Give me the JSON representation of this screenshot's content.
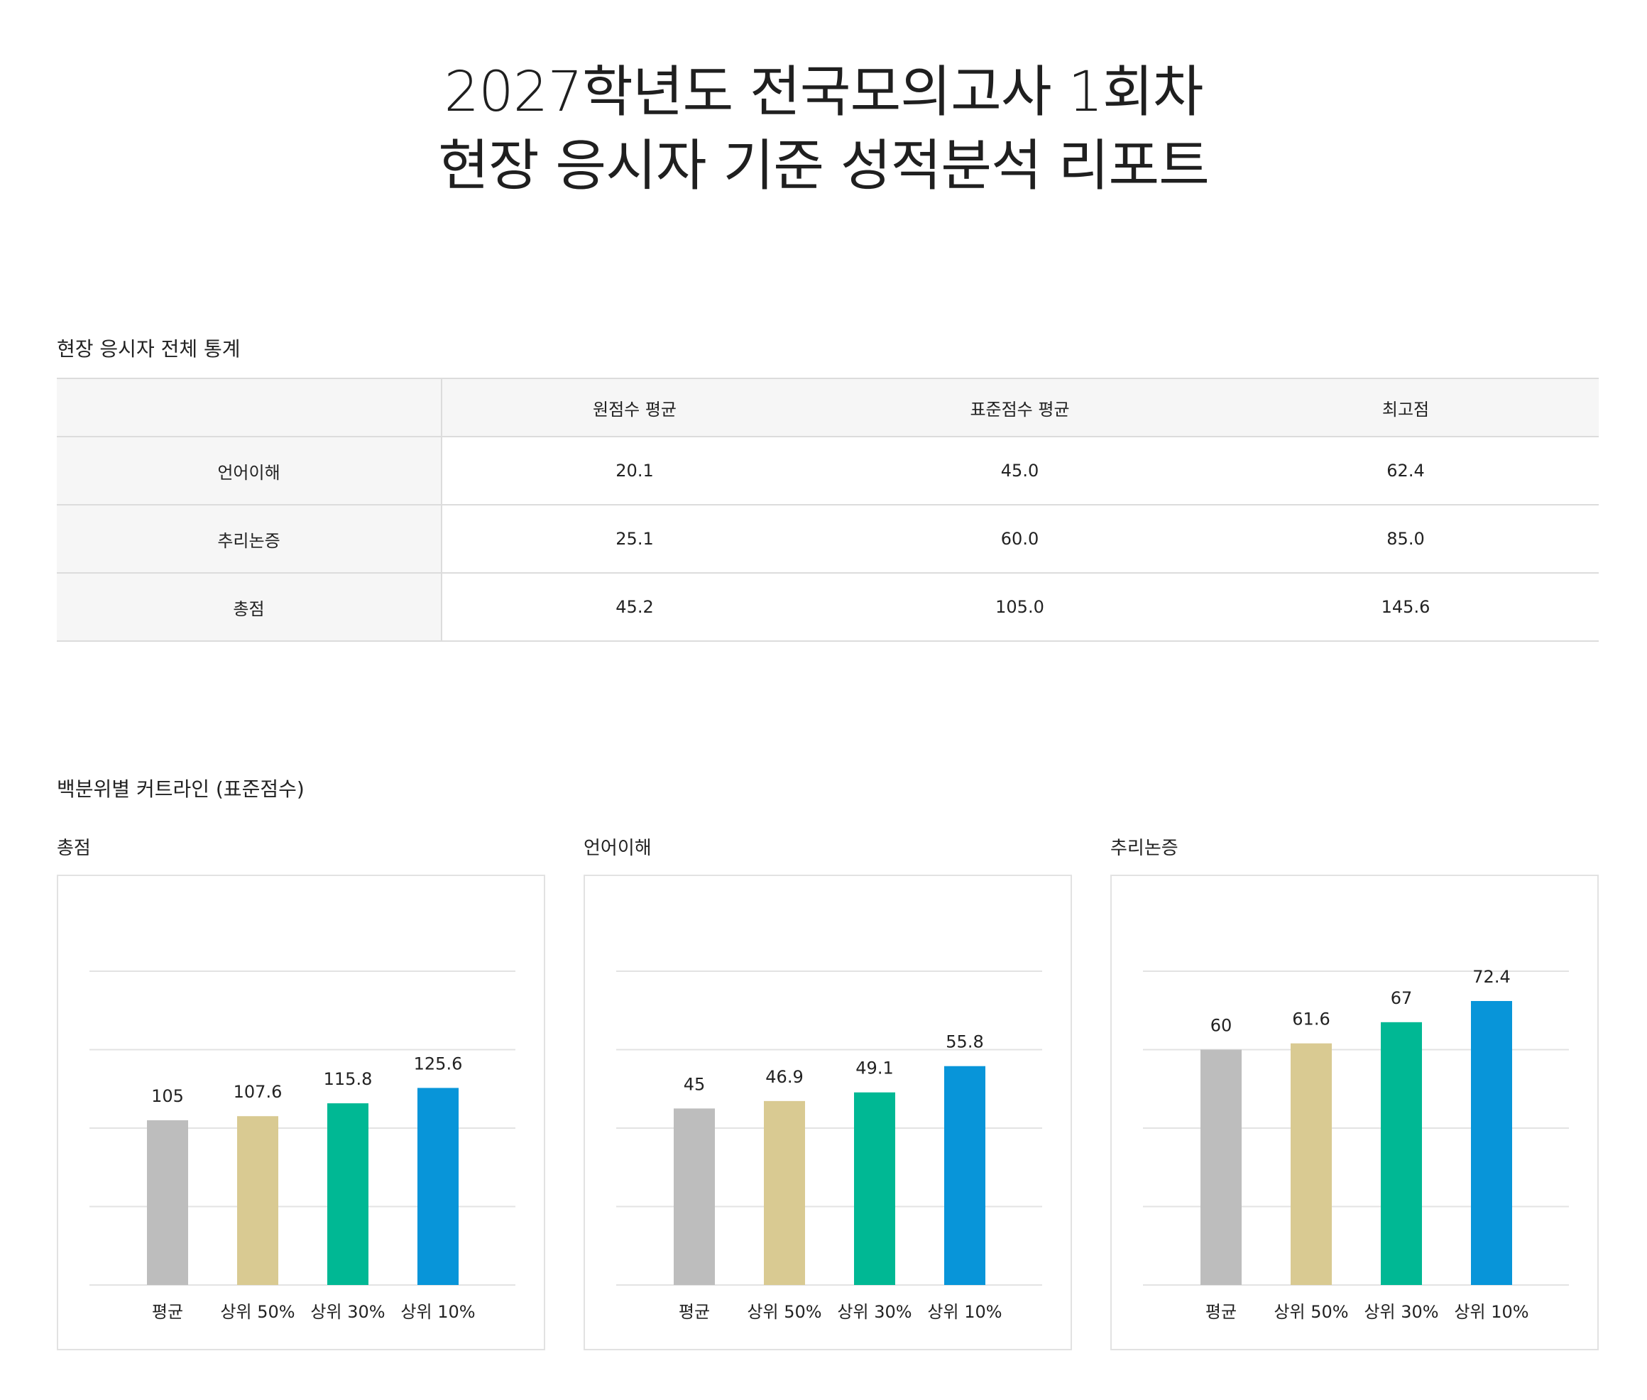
{
  "title": {
    "line1": "2027학년도 전국모의고사 1회차",
    "line2": "현장 응시자 기준 성적분석 리포트"
  },
  "stats_section": {
    "heading": "현장 응시자 전체 통계",
    "columns": [
      "",
      "원점수 평균",
      "표준점수 평균",
      "최고점"
    ],
    "rows": [
      {
        "label": "언어이해",
        "raw_avg": "20.1",
        "std_avg": "45.0",
        "max": "62.4"
      },
      {
        "label": "추리논증",
        "raw_avg": "25.1",
        "std_avg": "60.0",
        "max": "85.0"
      },
      {
        "label": "총점",
        "raw_avg": "45.2",
        "std_avg": "105.0",
        "max": "145.6"
      }
    ]
  },
  "cutline_section": {
    "heading": "백분위별 커트라인 (표준점수)"
  },
  "colors": [
    "#bdbdbd",
    "#d9ca92",
    "#00b894",
    "#0895d9"
  ],
  "chart_data": [
    {
      "type": "bar",
      "title": "총점",
      "categories": [
        "평균",
        "상위 50%",
        "상위 30%",
        "상위 10%"
      ],
      "values": [
        105,
        107.6,
        115.8,
        125.6
      ],
      "ylim": [
        0,
        200
      ],
      "grid": true
    },
    {
      "type": "bar",
      "title": "언어이해",
      "categories": [
        "평균",
        "상위 50%",
        "상위 30%",
        "상위 10%"
      ],
      "values": [
        45,
        46.9,
        49.1,
        55.8
      ],
      "ylim": [
        0,
        80
      ],
      "grid": true
    },
    {
      "type": "bar",
      "title": "추리논증",
      "categories": [
        "평균",
        "상위 50%",
        "상위 30%",
        "상위 10%"
      ],
      "values": [
        60,
        61.6,
        67,
        72.4
      ],
      "ylim": [
        0,
        80
      ],
      "grid": true
    }
  ]
}
